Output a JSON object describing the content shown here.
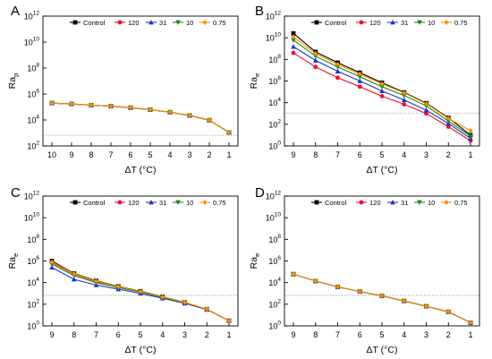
{
  "figure": {
    "legend_labels": [
      "Control",
      "120",
      "31",
      "10",
      "0.75"
    ],
    "series_colors": [
      "#000000",
      "#e8112d",
      "#1f35c8",
      "#1a8a1a",
      "#ff8c00"
    ],
    "series_markers": [
      "square",
      "circle",
      "triangle-up",
      "triangle-down",
      "diamond"
    ],
    "grey_guide_color": "#9a9a9a"
  },
  "chart_data": [
    {
      "panel": "A",
      "type": "line",
      "xlabel": "ΔT (°C)",
      "ylabel": "Ra",
      "ylabel_subscript": "p",
      "x": [
        10,
        9,
        8,
        7,
        6,
        5,
        4,
        3,
        2,
        1
      ],
      "xlim": [
        10,
        1
      ],
      "yscale": "log",
      "ylim": [
        100,
        1000000000000
      ],
      "yticks_exp": [
        2,
        4,
        6,
        8,
        10,
        12
      ],
      "threshold_y": 657,
      "series": [
        {
          "name": "Control",
          "values": [
            200000,
            170000,
            140000,
            115000,
            88000,
            62000,
            40000,
            22000,
            9500,
            1100
          ]
        },
        {
          "name": "120",
          "values": [
            200000,
            170000,
            140000,
            115000,
            88000,
            62000,
            40000,
            22000,
            9500,
            1100
          ]
        },
        {
          "name": "31",
          "values": [
            200000,
            170000,
            140000,
            115000,
            88000,
            62000,
            40000,
            22000,
            9500,
            1100
          ]
        },
        {
          "name": "10",
          "values": [
            200000,
            170000,
            140000,
            115000,
            88000,
            62000,
            40000,
            22000,
            9500,
            1100
          ]
        },
        {
          "name": "0.75",
          "values": [
            200000,
            170000,
            140000,
            115000,
            88000,
            62000,
            40000,
            22000,
            9500,
            1100
          ]
        }
      ]
    },
    {
      "panel": "B",
      "type": "line",
      "xlabel": "ΔT (°C)",
      "ylabel": "Ra",
      "ylabel_subscript": "e",
      "x": [
        9,
        8,
        7,
        6,
        5,
        4,
        3,
        2,
        1
      ],
      "xlim": [
        9,
        1
      ],
      "yscale": "log",
      "ylim": [
        1,
        1000000000000
      ],
      "yticks_exp": [
        0,
        2,
        4,
        6,
        8,
        10,
        12
      ],
      "threshold_y": 1100,
      "series": [
        {
          "name": "Control",
          "values": [
            25000000000,
            500000000,
            50000000,
            6000000,
            700000,
            90000,
            9000,
            400,
            10
          ]
        },
        {
          "name": "120",
          "values": [
            400000000,
            20000000,
            2000000,
            300000,
            40000,
            7000,
            1000,
            60,
            3
          ]
        },
        {
          "name": "31",
          "values": [
            1500000000,
            80000000,
            8000000,
            1000000,
            120000,
            18000,
            2000,
            120,
            5
          ]
        },
        {
          "name": "10",
          "values": [
            6000000000,
            200000000,
            20000000,
            2500000,
            300000,
            45000,
            5000,
            200,
            8
          ]
        },
        {
          "name": "0.75",
          "values": [
            12000000000,
            350000000,
            35000000,
            4500000,
            550000,
            80000,
            8000,
            350,
            25
          ]
        }
      ]
    },
    {
      "panel": "C",
      "type": "line",
      "xlabel": "ΔT (°C)",
      "ylabel": "Ra",
      "ylabel_subscript": "e",
      "x": [
        9,
        8,
        7,
        6,
        5,
        4,
        3,
        2,
        1
      ],
      "xlim": [
        9,
        1
      ],
      "yscale": "log",
      "ylim": [
        1,
        1000000000000
      ],
      "yticks_exp": [
        0,
        2,
        4,
        6,
        8,
        10,
        12
      ],
      "threshold_y": 657,
      "series": [
        {
          "name": "Control",
          "values": [
            1000000,
            70000,
            15000,
            4500,
            1600,
            500,
            150,
            35,
            3
          ]
        },
        {
          "name": "120",
          "values": [
            700000,
            60000,
            13000,
            4000,
            1400,
            420,
            140,
            35,
            3
          ]
        },
        {
          "name": "31",
          "values": [
            250000,
            20000,
            6000,
            2500,
            1000,
            350,
            120,
            32,
            3
          ]
        },
        {
          "name": "10",
          "values": [
            500000,
            45000,
            10000,
            3500,
            1300,
            420,
            140,
            35,
            3
          ]
        },
        {
          "name": "0.75",
          "values": [
            800000,
            65000,
            14000,
            4200,
            1500,
            480,
            150,
            35,
            3
          ]
        }
      ]
    },
    {
      "panel": "D",
      "type": "line",
      "xlabel": "ΔT (°C)",
      "ylabel": "Ra",
      "ylabel_subscript": "e",
      "x": [
        9,
        8,
        7,
        6,
        5,
        4,
        3,
        2,
        1
      ],
      "xlim": [
        9,
        1
      ],
      "yscale": "log",
      "ylim": [
        1,
        1000000000000
      ],
      "yticks_exp": [
        0,
        2,
        4,
        6,
        8,
        10,
        12
      ],
      "threshold_y": 657,
      "series": [
        {
          "name": "Control",
          "values": [
            60000,
            14000,
            4000,
            1500,
            600,
            200,
            65,
            20,
            2
          ]
        },
        {
          "name": "120",
          "values": [
            60000,
            14000,
            4000,
            1500,
            600,
            200,
            65,
            20,
            2
          ]
        },
        {
          "name": "31",
          "values": [
            60000,
            14000,
            4000,
            1500,
            600,
            200,
            65,
            20,
            2
          ]
        },
        {
          "name": "10",
          "values": [
            60000,
            14000,
            4000,
            1500,
            600,
            200,
            65,
            20,
            2
          ]
        },
        {
          "name": "0.75",
          "values": [
            60000,
            14000,
            4000,
            1500,
            600,
            200,
            65,
            20,
            2
          ]
        }
      ]
    }
  ]
}
